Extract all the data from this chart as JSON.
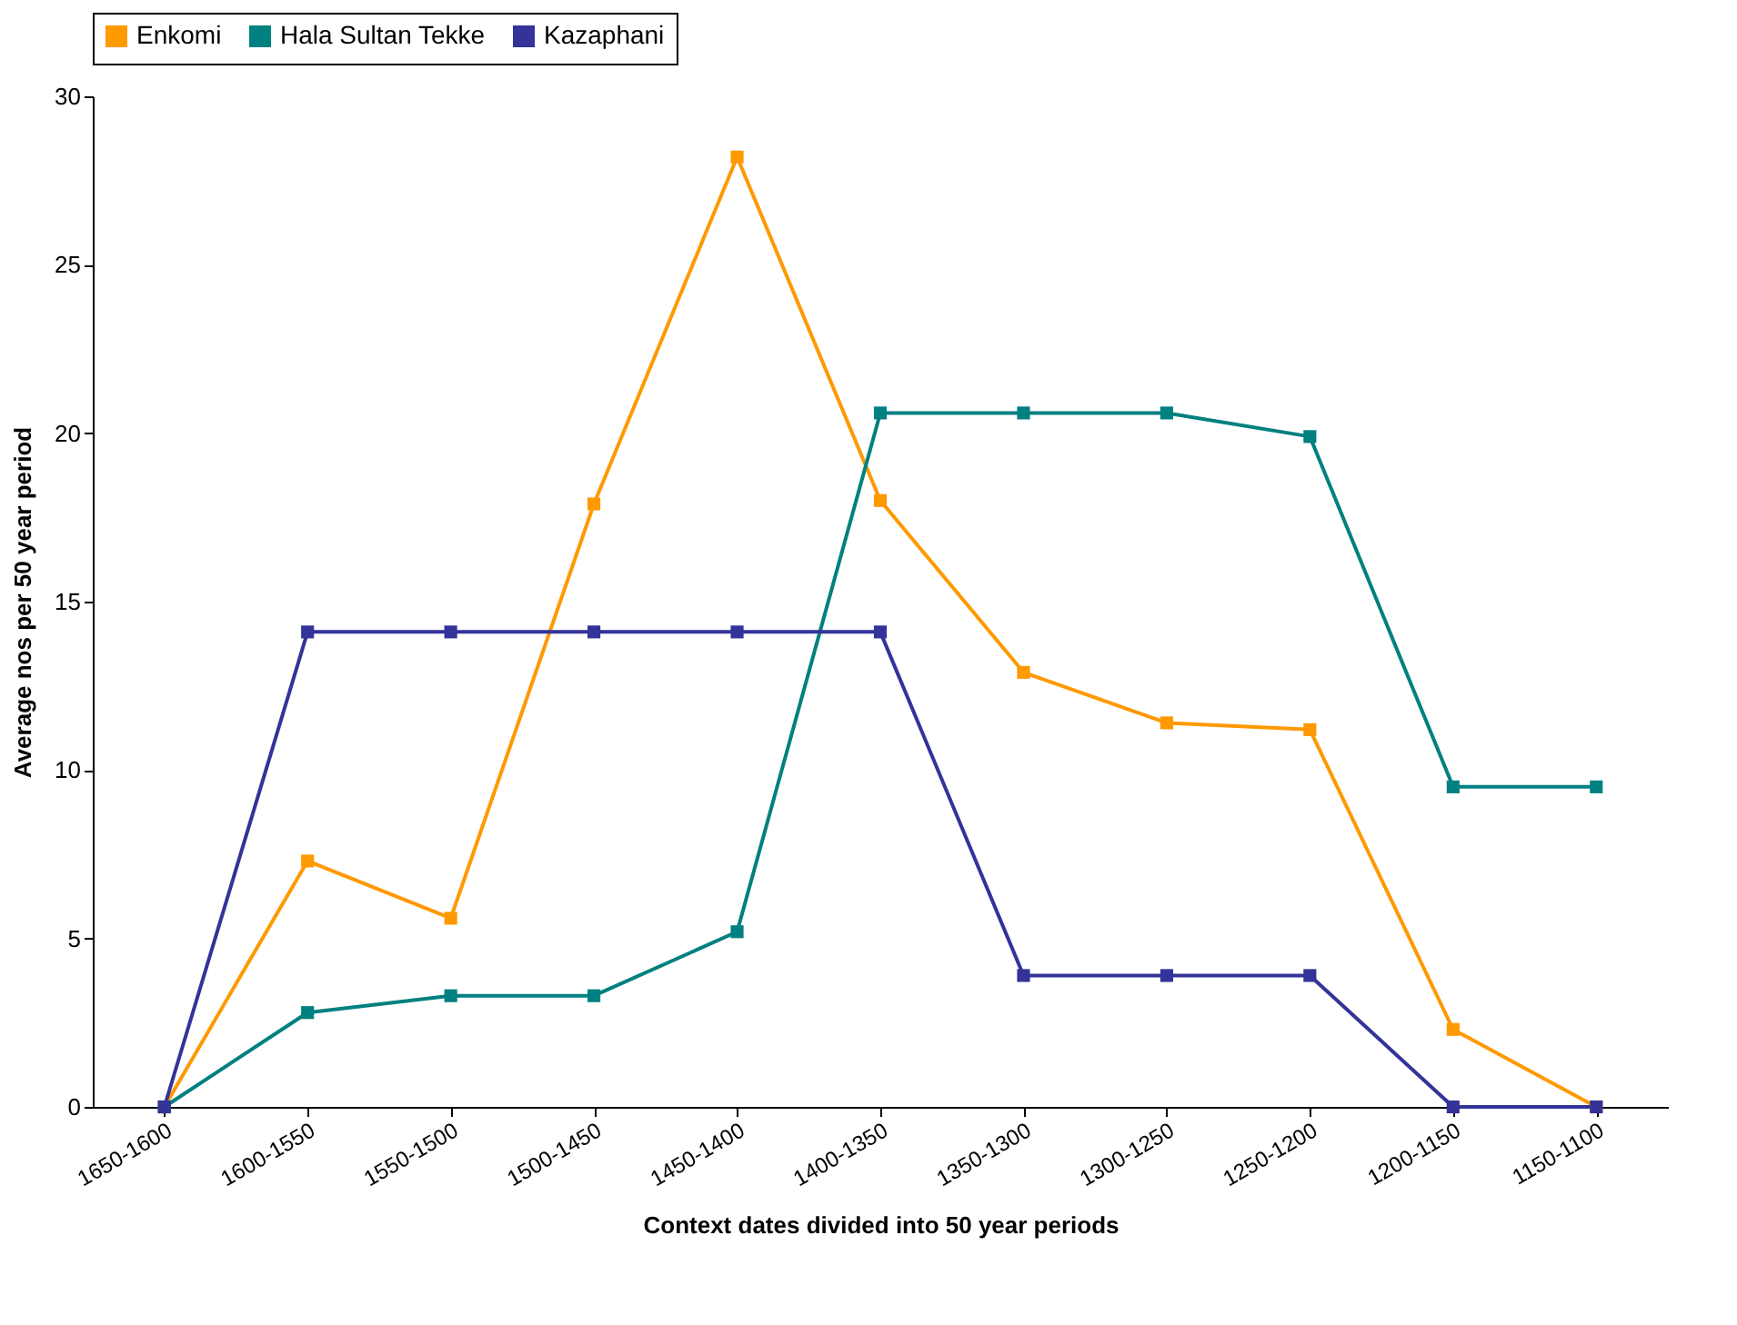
{
  "chart_data": {
    "type": "line",
    "xlabel": "Context dates divided into 50 year periods",
    "ylabel": "Average nos per 50 year period",
    "categories": [
      "1650-1600",
      "1600-1550",
      "1550-1500",
      "1500-1450",
      "1450-1400",
      "1400-1350",
      "1350-1300",
      "1300-1250",
      "1250-1200",
      "1200-1150",
      "1150-1100"
    ],
    "series": [
      {
        "name": "Enkomi",
        "color": "#ff9900",
        "values": [
          0,
          7.3,
          5.6,
          17.9,
          28.2,
          18.0,
          12.9,
          11.4,
          11.2,
          2.3,
          0
        ]
      },
      {
        "name": "Hala Sultan Tekke",
        "color": "#008080",
        "values": [
          0,
          2.8,
          3.3,
          3.3,
          5.2,
          20.6,
          20.6,
          20.6,
          19.9,
          9.5,
          9.5
        ]
      },
      {
        "name": "Kazaphani",
        "color": "#333399",
        "values": [
          0,
          14.1,
          14.1,
          14.1,
          14.1,
          14.1,
          3.9,
          3.9,
          3.9,
          0,
          0
        ]
      }
    ],
    "ylim": [
      0,
      30
    ],
    "yticks": [
      0,
      5,
      10,
      15,
      20,
      25,
      30
    ],
    "grid": false,
    "legend": "top",
    "marker": "square",
    "line_style": "solid"
  }
}
